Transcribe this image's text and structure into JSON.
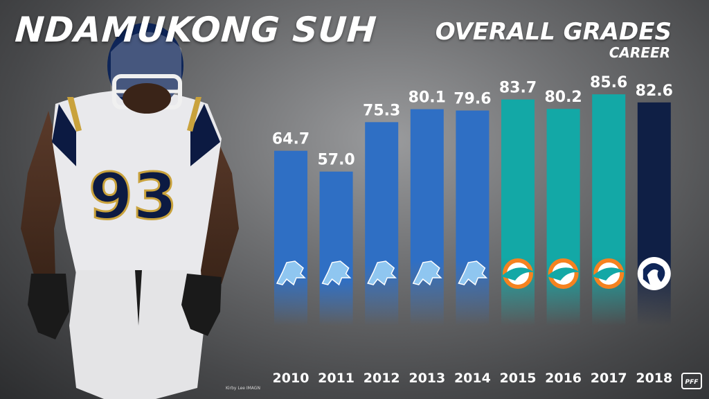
{
  "title": "NDAMUKONG SUH",
  "chart_title": "OVERALL GRADES",
  "chart_subtitle": "CAREER",
  "photo_credit": "Kirby Lee IMAGN",
  "brand_logo": "PFF",
  "colors": {
    "lions": "#2f6fc4",
    "dolphins": "#13a8a6",
    "rams": "#0f1f45"
  },
  "chart_data": {
    "type": "bar",
    "title": "OVERALL GRADES",
    "subtitle": "CAREER",
    "categories": [
      "2010",
      "2011",
      "2012",
      "2013",
      "2014",
      "2015",
      "2016",
      "2017",
      "2018"
    ],
    "values": [
      64.7,
      57.0,
      75.3,
      80.1,
      79.6,
      83.7,
      80.2,
      85.6,
      82.6
    ],
    "value_labels": [
      "64.7",
      "57.0",
      "75.3",
      "80.1",
      "79.6",
      "83.7",
      "80.2",
      "85.6",
      "82.6"
    ],
    "teams": [
      "lions",
      "lions",
      "lions",
      "lions",
      "lions",
      "dolphins",
      "dolphins",
      "dolphins",
      "rams"
    ],
    "team_logo_icons": [
      "lions-logo-icon",
      "lions-logo-icon",
      "lions-logo-icon",
      "lions-logo-icon",
      "lions-logo-icon",
      "dolphins-logo-icon",
      "dolphins-logo-icon",
      "dolphins-logo-icon",
      "rams-logo-icon"
    ],
    "ylim": [
      0,
      100
    ],
    "grid": false,
    "legend": "none"
  }
}
